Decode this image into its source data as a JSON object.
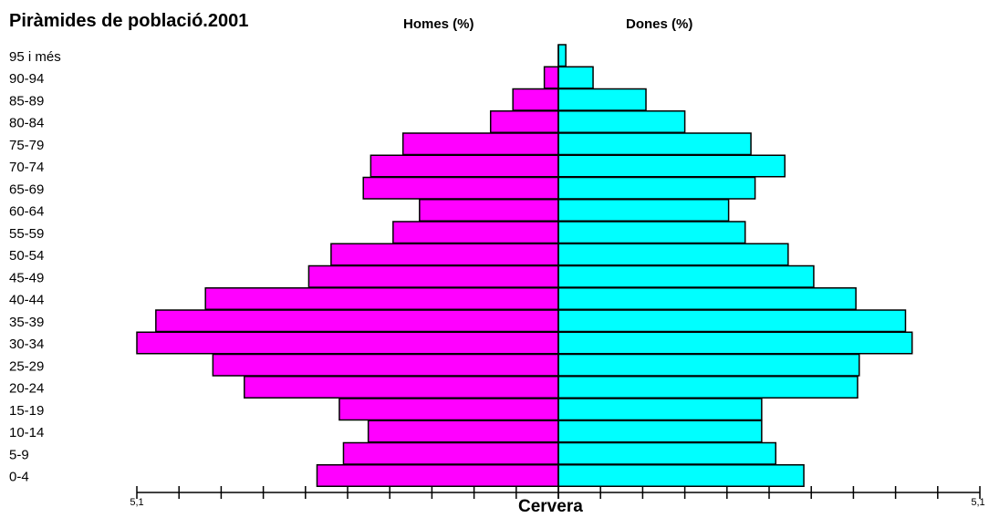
{
  "chart_data": {
    "type": "bar",
    "title": "Piràmides de població.2001",
    "left_header": "Homes (%)",
    "right_header": "Dones (%)",
    "xlabel": "Cervera",
    "categories": [
      "0-4",
      "5-9",
      "10-14",
      "15-19",
      "20-24",
      "25-29",
      "30-34",
      "35-39",
      "40-44",
      "45-49",
      "50-54",
      "55-59",
      "60-64",
      "65-69",
      "70-74",
      "75-79",
      "80-84",
      "85-89",
      "90-94",
      "95 i més"
    ],
    "series": [
      {
        "name": "Homes (%)",
        "color": "#ff00ff",
        "values": [
          2.92,
          2.6,
          2.3,
          2.65,
          3.8,
          4.18,
          5.1,
          4.87,
          4.27,
          3.02,
          2.75,
          2.0,
          1.68,
          2.36,
          2.27,
          1.88,
          0.82,
          0.55,
          0.17,
          0.0
        ]
      },
      {
        "name": "Dones (%)",
        "color": "#00ffff",
        "values": [
          2.97,
          2.63,
          2.46,
          2.46,
          3.62,
          3.64,
          4.28,
          4.2,
          3.6,
          3.09,
          2.78,
          2.26,
          2.06,
          2.38,
          2.74,
          2.33,
          1.53,
          1.06,
          0.42,
          0.09
        ]
      }
    ],
    "xlim": [
      -5.1,
      5.1
    ],
    "x_tick_labels": [
      "5,1",
      "5,1"
    ],
    "grid": false,
    "legend": "top"
  }
}
